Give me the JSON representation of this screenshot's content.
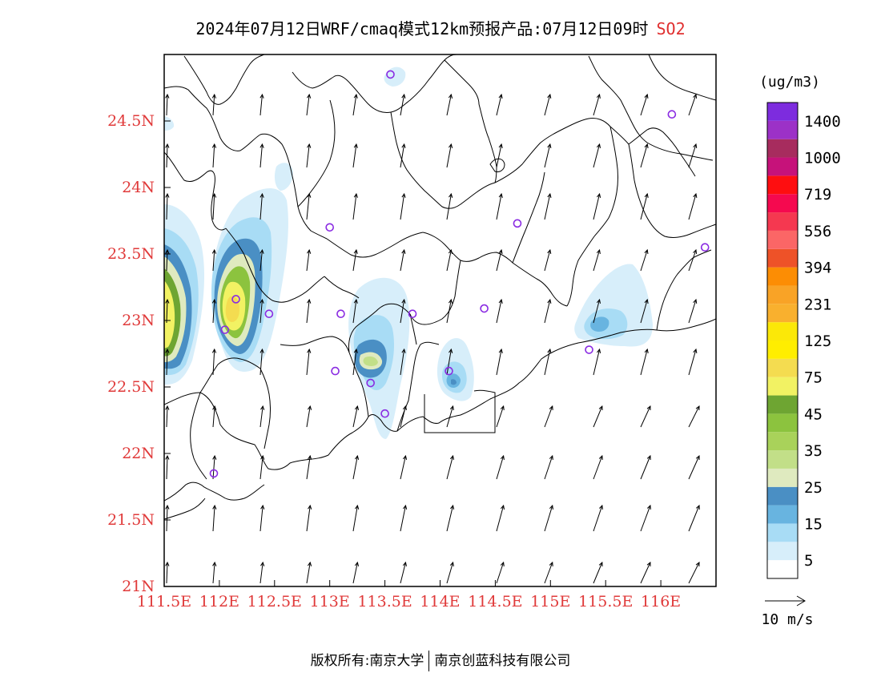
{
  "title": {
    "main": "2024年07月12日WRF/cmaq模式12km预报产品:07月12日09时",
    "pollutant": "SO2"
  },
  "map": {
    "lon_range": [
      111.5,
      116.5
    ],
    "lat_range": [
      21.0,
      25.0
    ],
    "x_ticks": [
      {
        "lon": 111.5,
        "label": "111.5E"
      },
      {
        "lon": 112.0,
        "label": "112E"
      },
      {
        "lon": 112.5,
        "label": "112.5E"
      },
      {
        "lon": 113.0,
        "label": "113E"
      },
      {
        "lon": 113.5,
        "label": "113.5E"
      },
      {
        "lon": 114.0,
        "label": "114E"
      },
      {
        "lon": 114.5,
        "label": "114.5E"
      },
      {
        "lon": 115.0,
        "label": "115E"
      },
      {
        "lon": 115.5,
        "label": "115.5E"
      },
      {
        "lon": 116.0,
        "label": "116E"
      }
    ],
    "y_ticks": [
      {
        "lat": 21.0,
        "label": "21N"
      },
      {
        "lat": 21.5,
        "label": "21.5N"
      },
      {
        "lat": 22.0,
        "label": "22N"
      },
      {
        "lat": 22.5,
        "label": "22.5N"
      },
      {
        "lat": 23.0,
        "label": "23N"
      },
      {
        "lat": 23.5,
        "label": "23.5N"
      },
      {
        "lat": 24.0,
        "label": "24N"
      },
      {
        "lat": 24.5,
        "label": "24.5N"
      }
    ],
    "stations": [
      {
        "lon": 113.55,
        "lat": 24.85
      },
      {
        "lon": 116.1,
        "lat": 24.55
      },
      {
        "lon": 113.0,
        "lat": 23.7
      },
      {
        "lon": 114.7,
        "lat": 23.73
      },
      {
        "lon": 116.4,
        "lat": 23.55
      },
      {
        "lon": 112.45,
        "lat": 23.05
      },
      {
        "lon": 112.15,
        "lat": 23.16
      },
      {
        "lon": 113.1,
        "lat": 23.05
      },
      {
        "lon": 113.75,
        "lat": 23.05
      },
      {
        "lon": 114.4,
        "lat": 23.09
      },
      {
        "lon": 112.05,
        "lat": 22.93
      },
      {
        "lon": 113.05,
        "lat": 22.62
      },
      {
        "lon": 113.37,
        "lat": 22.53
      },
      {
        "lon": 114.08,
        "lat": 22.62
      },
      {
        "lon": 115.35,
        "lat": 22.78
      },
      {
        "lon": 113.5,
        "lat": 22.3
      },
      {
        "lon": 111.95,
        "lat": 21.85
      }
    ],
    "wind_reference": "10 m/s"
  },
  "colorbar": {
    "unit": "(ug/m3)",
    "colors": [
      "#ffffff",
      "#d7eefa",
      "#a8dcf5",
      "#68b4e0",
      "#4a8fc4",
      "#dfeabf",
      "#c2df88",
      "#a9d25a",
      "#8cc33e",
      "#6ea532",
      "#f2f263",
      "#f4dc50",
      "#ffee00",
      "#fbe808",
      "#f9b02e",
      "#f9a326",
      "#fc8d04",
      "#ee5228",
      "#fb6666",
      "#f53850",
      "#f5094f",
      "#fe0e10",
      "#c6127a",
      "#a72c5e",
      "#9c31c7",
      "#7d2cde"
    ],
    "labels": [
      "5",
      "15",
      "25",
      "35",
      "45",
      "75",
      "125",
      "231",
      "394",
      "556",
      "719",
      "1000",
      "1400"
    ]
  },
  "footer": {
    "left": "版权所有:南京大学",
    "right": "南京创蓝科技有限公司"
  }
}
